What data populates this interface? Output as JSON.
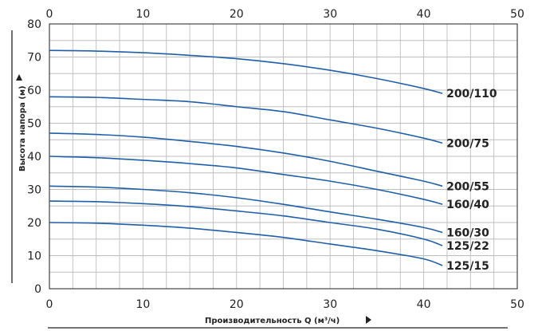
{
  "chart_data": {
    "type": "line",
    "xlabel": "Производительность Q (м³/ч)",
    "ylabel": "Высота напора (м)",
    "xlim": [
      0,
      50
    ],
    "ylim": [
      0,
      80
    ],
    "x_ticks": [
      "0",
      "10",
      "20",
      "30",
      "40",
      "50"
    ],
    "y_ticks": [
      "0",
      "10",
      "20",
      "30",
      "40",
      "50",
      "60",
      "70",
      "80"
    ],
    "grid": true,
    "line_color": "#1f5fa8",
    "series": [
      {
        "name": "200/110",
        "x": [
          0,
          5,
          10,
          15,
          20,
          25,
          30,
          35,
          40,
          42
        ],
        "y": [
          72,
          71.8,
          71.3,
          70.5,
          69.5,
          68,
          66,
          63.5,
          60.5,
          59
        ]
      },
      {
        "name": "200/75",
        "x": [
          0,
          5,
          10,
          15,
          20,
          25,
          30,
          35,
          40,
          42
        ],
        "y": [
          58,
          57.8,
          57.2,
          56.5,
          55,
          53.5,
          51,
          48.5,
          45.5,
          44
        ]
      },
      {
        "name": "200/55",
        "x": [
          0,
          5,
          10,
          15,
          20,
          25,
          30,
          35,
          40,
          42
        ],
        "y": [
          47,
          46.6,
          45.8,
          44.5,
          43,
          41,
          38.5,
          35.5,
          32.5,
          31
        ]
      },
      {
        "name": "160/40",
        "x": [
          0,
          5,
          10,
          15,
          20,
          25,
          30,
          35,
          40,
          42
        ],
        "y": [
          40,
          39.6,
          38.8,
          37.8,
          36.5,
          34.5,
          32.5,
          30,
          27,
          25.5
        ]
      },
      {
        "name": "160/30",
        "x": [
          0,
          5,
          10,
          15,
          20,
          25,
          30,
          35,
          40,
          42
        ],
        "y": [
          31,
          30.7,
          30,
          29,
          27.5,
          25.5,
          23.2,
          21,
          18.5,
          17
        ]
      },
      {
        "name": "125/22",
        "x": [
          0,
          5,
          10,
          15,
          20,
          25,
          30,
          35,
          40,
          42
        ],
        "y": [
          26.5,
          26.3,
          25.7,
          24.8,
          23.5,
          22,
          20,
          18,
          15,
          13
        ]
      },
      {
        "name": "125/15",
        "x": [
          0,
          5,
          10,
          15,
          20,
          25,
          30,
          35,
          40,
          42
        ],
        "y": [
          20,
          19.8,
          19.2,
          18.3,
          17,
          15.5,
          13.5,
          11.5,
          9,
          7
        ]
      }
    ]
  }
}
